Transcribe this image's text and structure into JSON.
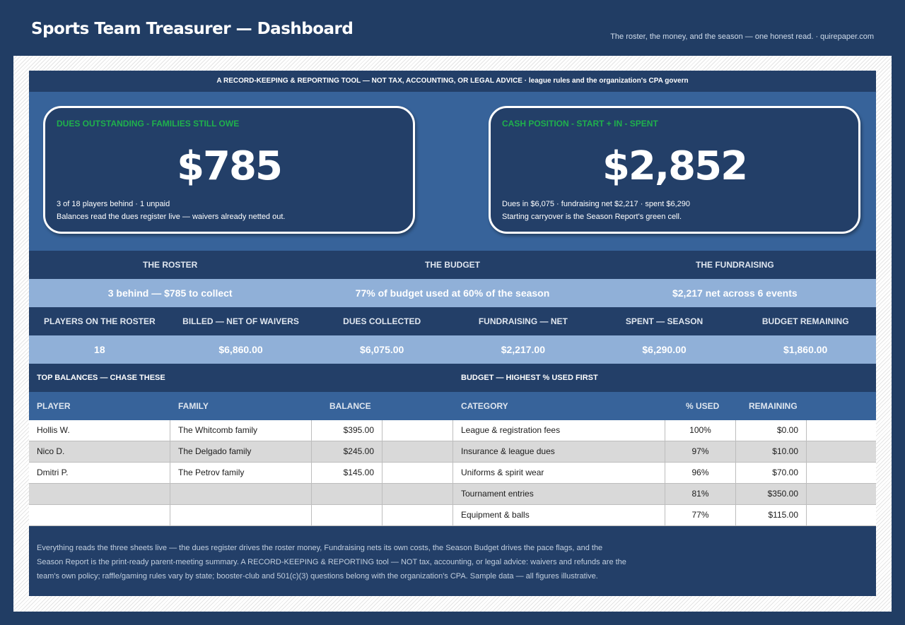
{
  "header": {
    "title": "Sports Team Treasurer — Dashboard",
    "tagline": "The roster, the money, and the season — one honest read.  ·  quirepaper.com"
  },
  "banner": "A RECORD-KEEPING & REPORTING TOOL — NOT TAX, ACCOUNTING, OR LEGAL ADVICE  ·  league rules and the organization's CPA govern",
  "kpis": {
    "dues": {
      "label": "DUES OUTSTANDING - FAMILIES STILL OWE",
      "value": "$785",
      "sub1": "3 of 18 players behind  ·  1 unpaid",
      "sub2": "Balances read the dues register live — waivers already netted out."
    },
    "cash": {
      "label": "CASH POSITION - START + IN - SPENT",
      "value": "$2,852",
      "sub1": "Dues in $6,075  ·  fundraising net $2,217  ·  spent $6,290",
      "sub2": "Starting carryover is the Season Report's green cell."
    }
  },
  "sections": {
    "headers": [
      "THE ROSTER",
      "THE BUDGET",
      "THE FUNDRAISING"
    ],
    "summaries": [
      "3 behind — $785 to collect",
      "77% of budget used at 60% of the season",
      "$2,217 net across 6 events"
    ]
  },
  "stats": {
    "labels": [
      "PLAYERS ON THE ROSTER",
      "BILLED — NET OF WAIVERS",
      "DUES COLLECTED",
      "FUNDRAISING — NET",
      "SPENT — SEASON",
      "BUDGET REMAINING"
    ],
    "values": [
      "18",
      "$6,860.00",
      "$6,075.00",
      "$2,217.00",
      "$6,290.00",
      "$1,860.00"
    ]
  },
  "balances": {
    "title": "TOP BALANCES — CHASE THESE",
    "columns": [
      "PLAYER",
      "FAMILY",
      "BALANCE"
    ],
    "rows": [
      {
        "player": "Hollis W.",
        "family": "The Whitcomb family",
        "balance": "$395.00"
      },
      {
        "player": "Nico D.",
        "family": "The Delgado family",
        "balance": "$245.00"
      },
      {
        "player": "Dmitri P.",
        "family": "The Petrov family",
        "balance": "$145.00"
      },
      {
        "player": "",
        "family": "",
        "balance": ""
      },
      {
        "player": "",
        "family": "",
        "balance": ""
      }
    ]
  },
  "budget": {
    "title": "BUDGET — HIGHEST % USED FIRST",
    "columns": [
      "CATEGORY",
      "% USED",
      "REMAINING"
    ],
    "rows": [
      {
        "category": "League & registration fees",
        "pct": "100%",
        "remaining": "$0.00"
      },
      {
        "category": "Insurance & league dues",
        "pct": "97%",
        "remaining": "$10.00"
      },
      {
        "category": "Uniforms & spirit wear",
        "pct": "96%",
        "remaining": "$70.00"
      },
      {
        "category": "Tournament entries",
        "pct": "81%",
        "remaining": "$350.00"
      },
      {
        "category": "Equipment & balls",
        "pct": "77%",
        "remaining": "$115.00"
      }
    ]
  },
  "footer": [
    "Everything reads the three sheets live — the dues register drives the roster money, Fundraising nets its own costs, the Season Budget drives the pace flags, and the",
    "Season Report is the print-ready parent-meeting summary. A RECORD-KEEPING & REPORTING tool — NOT tax, accounting, or legal advice: waivers and refunds are the",
    "team's own policy; raffle/gaming rules vary by state; booster-club and 501(c)(3) questions belong with the organization's CPA. Sample data — all figures illustrative."
  ]
}
